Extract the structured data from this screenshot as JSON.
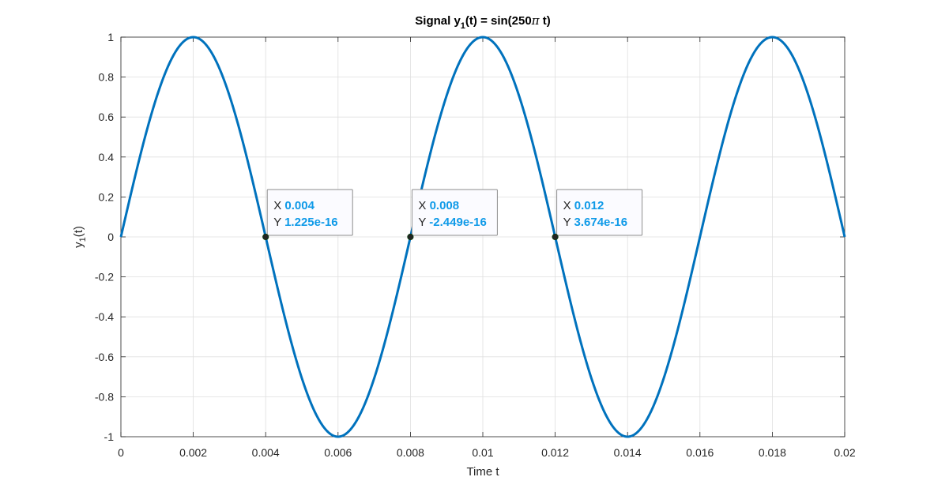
{
  "chart_data": {
    "type": "line",
    "title_main": "Signal y",
    "title_sub": "1",
    "title_rest": "(t) = sin(250",
    "title_pi": "π",
    "title_end": " t)",
    "xlabel": "Time t",
    "ylabel_main": "y",
    "ylabel_sub": "1",
    "ylabel_rest": "(t)",
    "xlim": [
      0,
      0.02
    ],
    "ylim": [
      -1,
      1
    ],
    "grid": true,
    "xticks": [
      0,
      0.002,
      0.004,
      0.006,
      0.008,
      0.01,
      0.012,
      0.014,
      0.016,
      0.018,
      0.02
    ],
    "xtick_labels": [
      "0",
      "0.002",
      "0.004",
      "0.006",
      "0.008",
      "0.01",
      "0.012",
      "0.014",
      "0.016",
      "0.018",
      "0.02"
    ],
    "yticks": [
      1,
      0.8,
      0.6,
      0.4,
      0.2,
      0,
      -0.2,
      -0.4,
      -0.6,
      -0.8,
      -1
    ],
    "ytick_labels": [
      "1",
      "0.8",
      "0.6",
      "0.4",
      "0.2",
      "0",
      "-0.2",
      "-0.4",
      "-0.6",
      "-0.8",
      "-1"
    ],
    "series": [
      {
        "function": "sin(250*pi*t)",
        "color": "#0072BD",
        "x": [
          0,
          0.0005,
          0.001,
          0.0015,
          0.002,
          0.0025,
          0.003,
          0.0035,
          0.004,
          0.0045,
          0.005,
          0.0055,
          0.006,
          0.0065,
          0.007,
          0.0075,
          0.008,
          0.0085,
          0.009,
          0.0095,
          0.01,
          0.0105,
          0.011,
          0.0115,
          0.012,
          0.0125,
          0.013,
          0.0135,
          0.014,
          0.0145,
          0.015,
          0.0155,
          0.016,
          0.0165,
          0.017,
          0.0175,
          0.018,
          0.0185,
          0.019,
          0.0195,
          0.02
        ],
        "y": [
          0,
          0.383,
          0.707,
          0.924,
          1,
          0.924,
          0.707,
          0.383,
          0,
          -0.383,
          -0.707,
          -0.924,
          -1,
          -0.924,
          -0.707,
          -0.383,
          0,
          0.383,
          0.707,
          0.924,
          1,
          0.924,
          0.707,
          0.383,
          0,
          -0.383,
          -0.707,
          -0.924,
          -1,
          -0.924,
          -0.707,
          -0.383,
          0,
          0.383,
          0.707,
          0.924,
          1,
          0.924,
          0.707,
          0.383,
          0
        ]
      }
    ],
    "datatips": [
      {
        "x": 0.004,
        "y": 0,
        "x_prefix": "X",
        "y_prefix": "Y",
        "x_text": "0.004",
        "y_text": "1.225e-16"
      },
      {
        "x": 0.008,
        "y": 0,
        "x_prefix": "X",
        "y_prefix": "Y",
        "x_text": "0.008",
        "y_text": "-2.449e-16"
      },
      {
        "x": 0.012,
        "y": 0,
        "x_prefix": "X",
        "y_prefix": "Y",
        "x_text": "0.012",
        "y_text": "3.674e-16"
      }
    ],
    "colors": {
      "line": "#0072BD",
      "datatip_value": "#0F9AE8",
      "grid": "#DFDFDF",
      "axis": "#262626"
    }
  }
}
